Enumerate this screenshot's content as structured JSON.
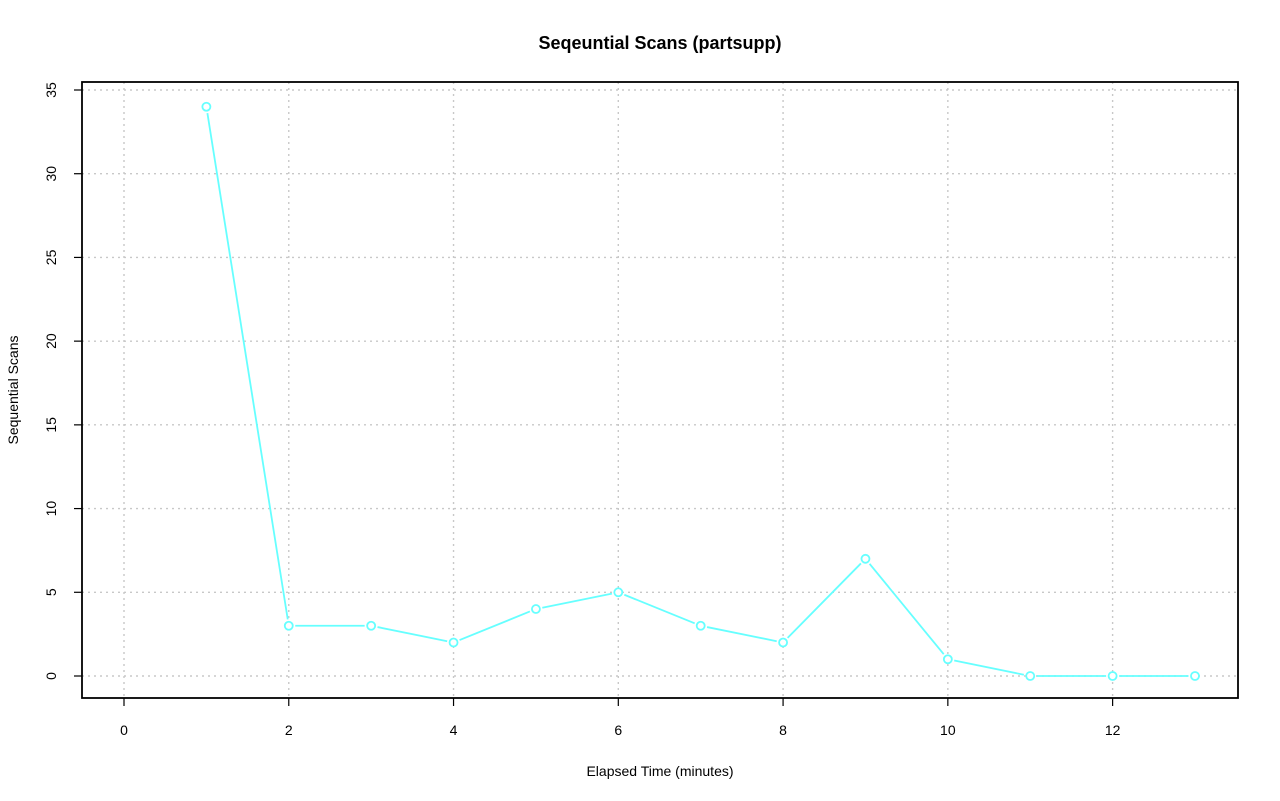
{
  "chart_data": {
    "type": "line",
    "title": "Seqeuntial Scans (partsupp)",
    "xlabel": "Elapsed Time (minutes)",
    "ylabel": "Sequential Scans",
    "xlim": [
      0,
      13
    ],
    "ylim": [
      0,
      35
    ],
    "xticks": [
      0,
      2,
      4,
      6,
      8,
      10,
      12
    ],
    "yticks": [
      0,
      5,
      10,
      15,
      20,
      25,
      30,
      35
    ],
    "grid": true,
    "series": [
      {
        "color": "#66ffff",
        "marker": "open-circle",
        "x": [
          1,
          2,
          3,
          4,
          5,
          6,
          7,
          8,
          9,
          10,
          11,
          12,
          13
        ],
        "y": [
          34,
          3,
          3,
          2,
          4,
          5,
          3,
          2,
          7,
          1,
          0,
          0,
          0
        ]
      }
    ]
  }
}
